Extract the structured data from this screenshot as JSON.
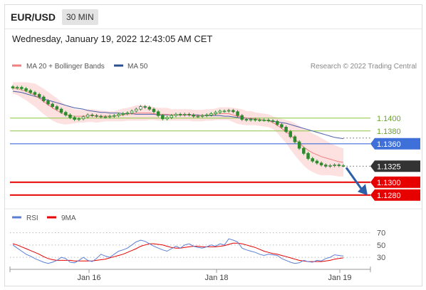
{
  "header": {
    "symbol": "EUR/USD",
    "timeframe": "30 MIN",
    "datetime": "Wednesday, January 19, 2022 12:43:05 AM CET"
  },
  "legend": {
    "bollinger": "MA 20 + Bollinger Bands",
    "ma50": "MA 50",
    "research": "Research © 2022 Trading Central",
    "rsi": "RSI",
    "rsi_ma": "9MA"
  },
  "colors": {
    "candle": "#2d8a2d",
    "ma20": "#f08080",
    "bands": "#fcd6d6",
    "ma50": "#4a5fa8",
    "green_level": "#8cc63f",
    "blue_level": "#3f6fd8",
    "red_level": "#e60000",
    "current": "#333333",
    "rsi": "#5b7fd6",
    "rsi_ma": "#e60000",
    "arrow": "#2c5fa8"
  },
  "chart_data": [
    {
      "type": "candlestick",
      "x_ticks": [
        "Jan 16",
        "Jan 18",
        "Jan 19"
      ],
      "ylim": [
        1.1262,
        1.1462
      ],
      "levels": [
        {
          "name": "resistance-2",
          "value": 1.14,
          "label": "1.1400",
          "style": "green"
        },
        {
          "name": "resistance-1",
          "value": 1.138,
          "label": "1.1380",
          "style": "green"
        },
        {
          "name": "pivot",
          "value": 1.136,
          "label": "1.1360",
          "style": "blue"
        },
        {
          "name": "current-price",
          "value": 1.1325,
          "label": "1.1325",
          "style": "current"
        },
        {
          "name": "support-1",
          "value": 1.13,
          "label": "1.1300",
          "style": "red"
        },
        {
          "name": "support-2",
          "value": 1.128,
          "label": "1.1280",
          "style": "red"
        }
      ],
      "close": [
        1.1447,
        1.1448,
        1.1446,
        1.1443,
        1.144,
        1.1437,
        1.1433,
        1.1427,
        1.1422,
        1.1418,
        1.1414,
        1.1409,
        1.1405,
        1.1401,
        1.1398,
        1.1399,
        1.1402,
        1.1405,
        1.1404,
        1.1403,
        1.1402,
        1.1402,
        1.1403,
        1.1404,
        1.1406,
        1.1407,
        1.1408,
        1.1411,
        1.1414,
        1.1418,
        1.1417,
        1.1414,
        1.141,
        1.1404,
        1.1399,
        1.1401,
        1.1404,
        1.1406,
        1.1405,
        1.1406,
        1.1405,
        1.1403,
        1.1403,
        1.1404,
        1.1405,
        1.1407,
        1.1409,
        1.1411,
        1.1411,
        1.1412,
        1.141,
        1.1404,
        1.1398,
        1.1397,
        1.1398,
        1.1397,
        1.1397,
        1.1397,
        1.1396,
        1.1395,
        1.139,
        1.1386,
        1.1379,
        1.1371,
        1.1363,
        1.1353,
        1.1345,
        1.1337,
        1.1333,
        1.133,
        1.1327,
        1.1325,
        1.1326,
        1.1327,
        1.1326,
        1.1326
      ],
      "ma20": [
        1.1447,
        1.1446,
        1.1444,
        1.1442,
        1.1439,
        1.1436,
        1.1431,
        1.1426,
        1.1421,
        1.1416,
        1.1412,
        1.1408,
        1.1405,
        1.1404,
        1.1403,
        1.1403,
        1.1403,
        1.1404,
        1.1404,
        1.1403,
        1.1403,
        1.1403,
        1.1403,
        1.1403,
        1.1404,
        1.1405,
        1.1406,
        1.1407,
        1.1408,
        1.1408,
        1.1408,
        1.1408,
        1.1407,
        1.1406,
        1.1406,
        1.1406,
        1.1405,
        1.1405,
        1.1405,
        1.1405,
        1.1405,
        1.1404,
        1.1404,
        1.1404,
        1.1405,
        1.1405,
        1.1406,
        1.1407,
        1.1407,
        1.1407,
        1.1405,
        1.1403,
        1.1402,
        1.14,
        1.14,
        1.1399,
        1.1398,
        1.1397,
        1.1396,
        1.1393,
        1.1389,
        1.1384,
        1.1379,
        1.1373,
        1.1367,
        1.1361,
        1.1355,
        1.135,
        1.1346,
        1.1343,
        1.134,
        1.1338,
        1.1336,
        1.1334,
        1.1332,
        1.1331
      ],
      "ma50": [
        1.1442,
        1.1441,
        1.144,
        1.1438,
        1.1436,
        1.1434,
        1.1432,
        1.143,
        1.1428,
        1.1426,
        1.1424,
        1.1422,
        1.142,
        1.1418,
        1.1416,
        1.1415,
        1.1414,
        1.1412,
        1.1411,
        1.141,
        1.1409,
        1.1409,
        1.1408,
        1.1408,
        1.1408,
        1.1407,
        1.1407,
        1.1407,
        1.1406,
        1.1406,
        1.1406,
        1.1406,
        1.1406,
        1.1405,
        1.1405,
        1.1405,
        1.1405,
        1.1405,
        1.1405,
        1.1405,
        1.1405,
        1.1405,
        1.1405,
        1.1404,
        1.1404,
        1.1404,
        1.1404,
        1.1404,
        1.1403,
        1.1403,
        1.1402,
        1.1401,
        1.14,
        1.14,
        1.1399,
        1.1399,
        1.1398,
        1.1397,
        1.1396,
        1.1395,
        1.1394,
        1.1393,
        1.1392,
        1.139,
        1.1388,
        1.1386,
        1.1384,
        1.1382,
        1.138,
        1.1378,
        1.1376,
        1.1374,
        1.1372,
        1.137,
        1.1369,
        1.1368
      ],
      "band_width": [
        0.0009,
        0.001,
        0.0012,
        0.0014,
        0.0016,
        0.0018,
        0.0019,
        0.002,
        0.002,
        0.002,
        0.0019,
        0.0017,
        0.0015,
        0.0013,
        0.0011,
        0.001,
        0.001,
        0.001,
        0.001,
        0.001,
        0.0009,
        0.0008,
        0.0008,
        0.0008,
        0.0009,
        0.001,
        0.001,
        0.0011,
        0.0012,
        0.0012,
        0.0012,
        0.0011,
        0.001,
        0.001,
        0.001,
        0.001,
        0.0009,
        0.0009,
        0.0009,
        0.0009,
        0.0009,
        0.0009,
        0.0009,
        0.0009,
        0.0009,
        0.0009,
        0.0009,
        0.001,
        0.001,
        0.001,
        0.0011,
        0.0012,
        0.0012,
        0.0011,
        0.0011,
        0.001,
        0.001,
        0.001,
        0.001,
        0.001,
        0.0012,
        0.0015,
        0.0018,
        0.0022,
        0.0025,
        0.0027,
        0.0029,
        0.003,
        0.003,
        0.003,
        0.0029,
        0.0027,
        0.0025,
        0.0024,
        0.0023,
        0.0022
      ]
    },
    {
      "type": "line",
      "y_ticks": [
        70,
        50,
        30
      ],
      "ylim": [
        15,
        80
      ],
      "rsi": [
        50,
        45,
        40,
        35,
        32,
        28,
        25,
        22,
        20,
        22,
        25,
        30,
        28,
        22,
        21,
        25,
        30,
        25,
        23,
        28,
        35,
        32,
        30,
        35,
        40,
        42,
        45,
        50,
        55,
        58,
        56,
        52,
        48,
        45,
        42,
        40,
        44,
        48,
        45,
        50,
        52,
        48,
        46,
        45,
        47,
        50,
        48,
        52,
        50,
        60,
        58,
        55,
        45,
        42,
        40,
        38,
        35,
        33,
        35,
        34,
        33,
        28,
        25,
        22,
        20,
        21,
        25,
        23,
        22,
        25,
        24,
        28,
        30,
        34,
        33,
        32
      ],
      "rsi_ma": [
        52,
        50,
        47,
        44,
        41,
        38,
        35,
        31,
        28,
        26,
        25,
        25,
        25,
        25,
        24,
        24,
        24,
        24,
        24,
        25,
        26,
        27,
        29,
        31,
        33,
        35,
        38,
        41,
        44,
        48,
        50,
        52,
        52,
        51,
        50,
        48,
        46,
        45,
        45,
        46,
        47,
        48,
        48,
        47,
        47,
        47,
        47,
        48,
        49,
        51,
        53,
        53,
        52,
        50,
        48,
        46,
        43,
        40,
        38,
        36,
        35,
        33,
        31,
        29,
        27,
        25,
        24,
        23,
        23,
        23,
        23,
        24,
        25,
        27,
        28,
        29
      ]
    }
  ]
}
